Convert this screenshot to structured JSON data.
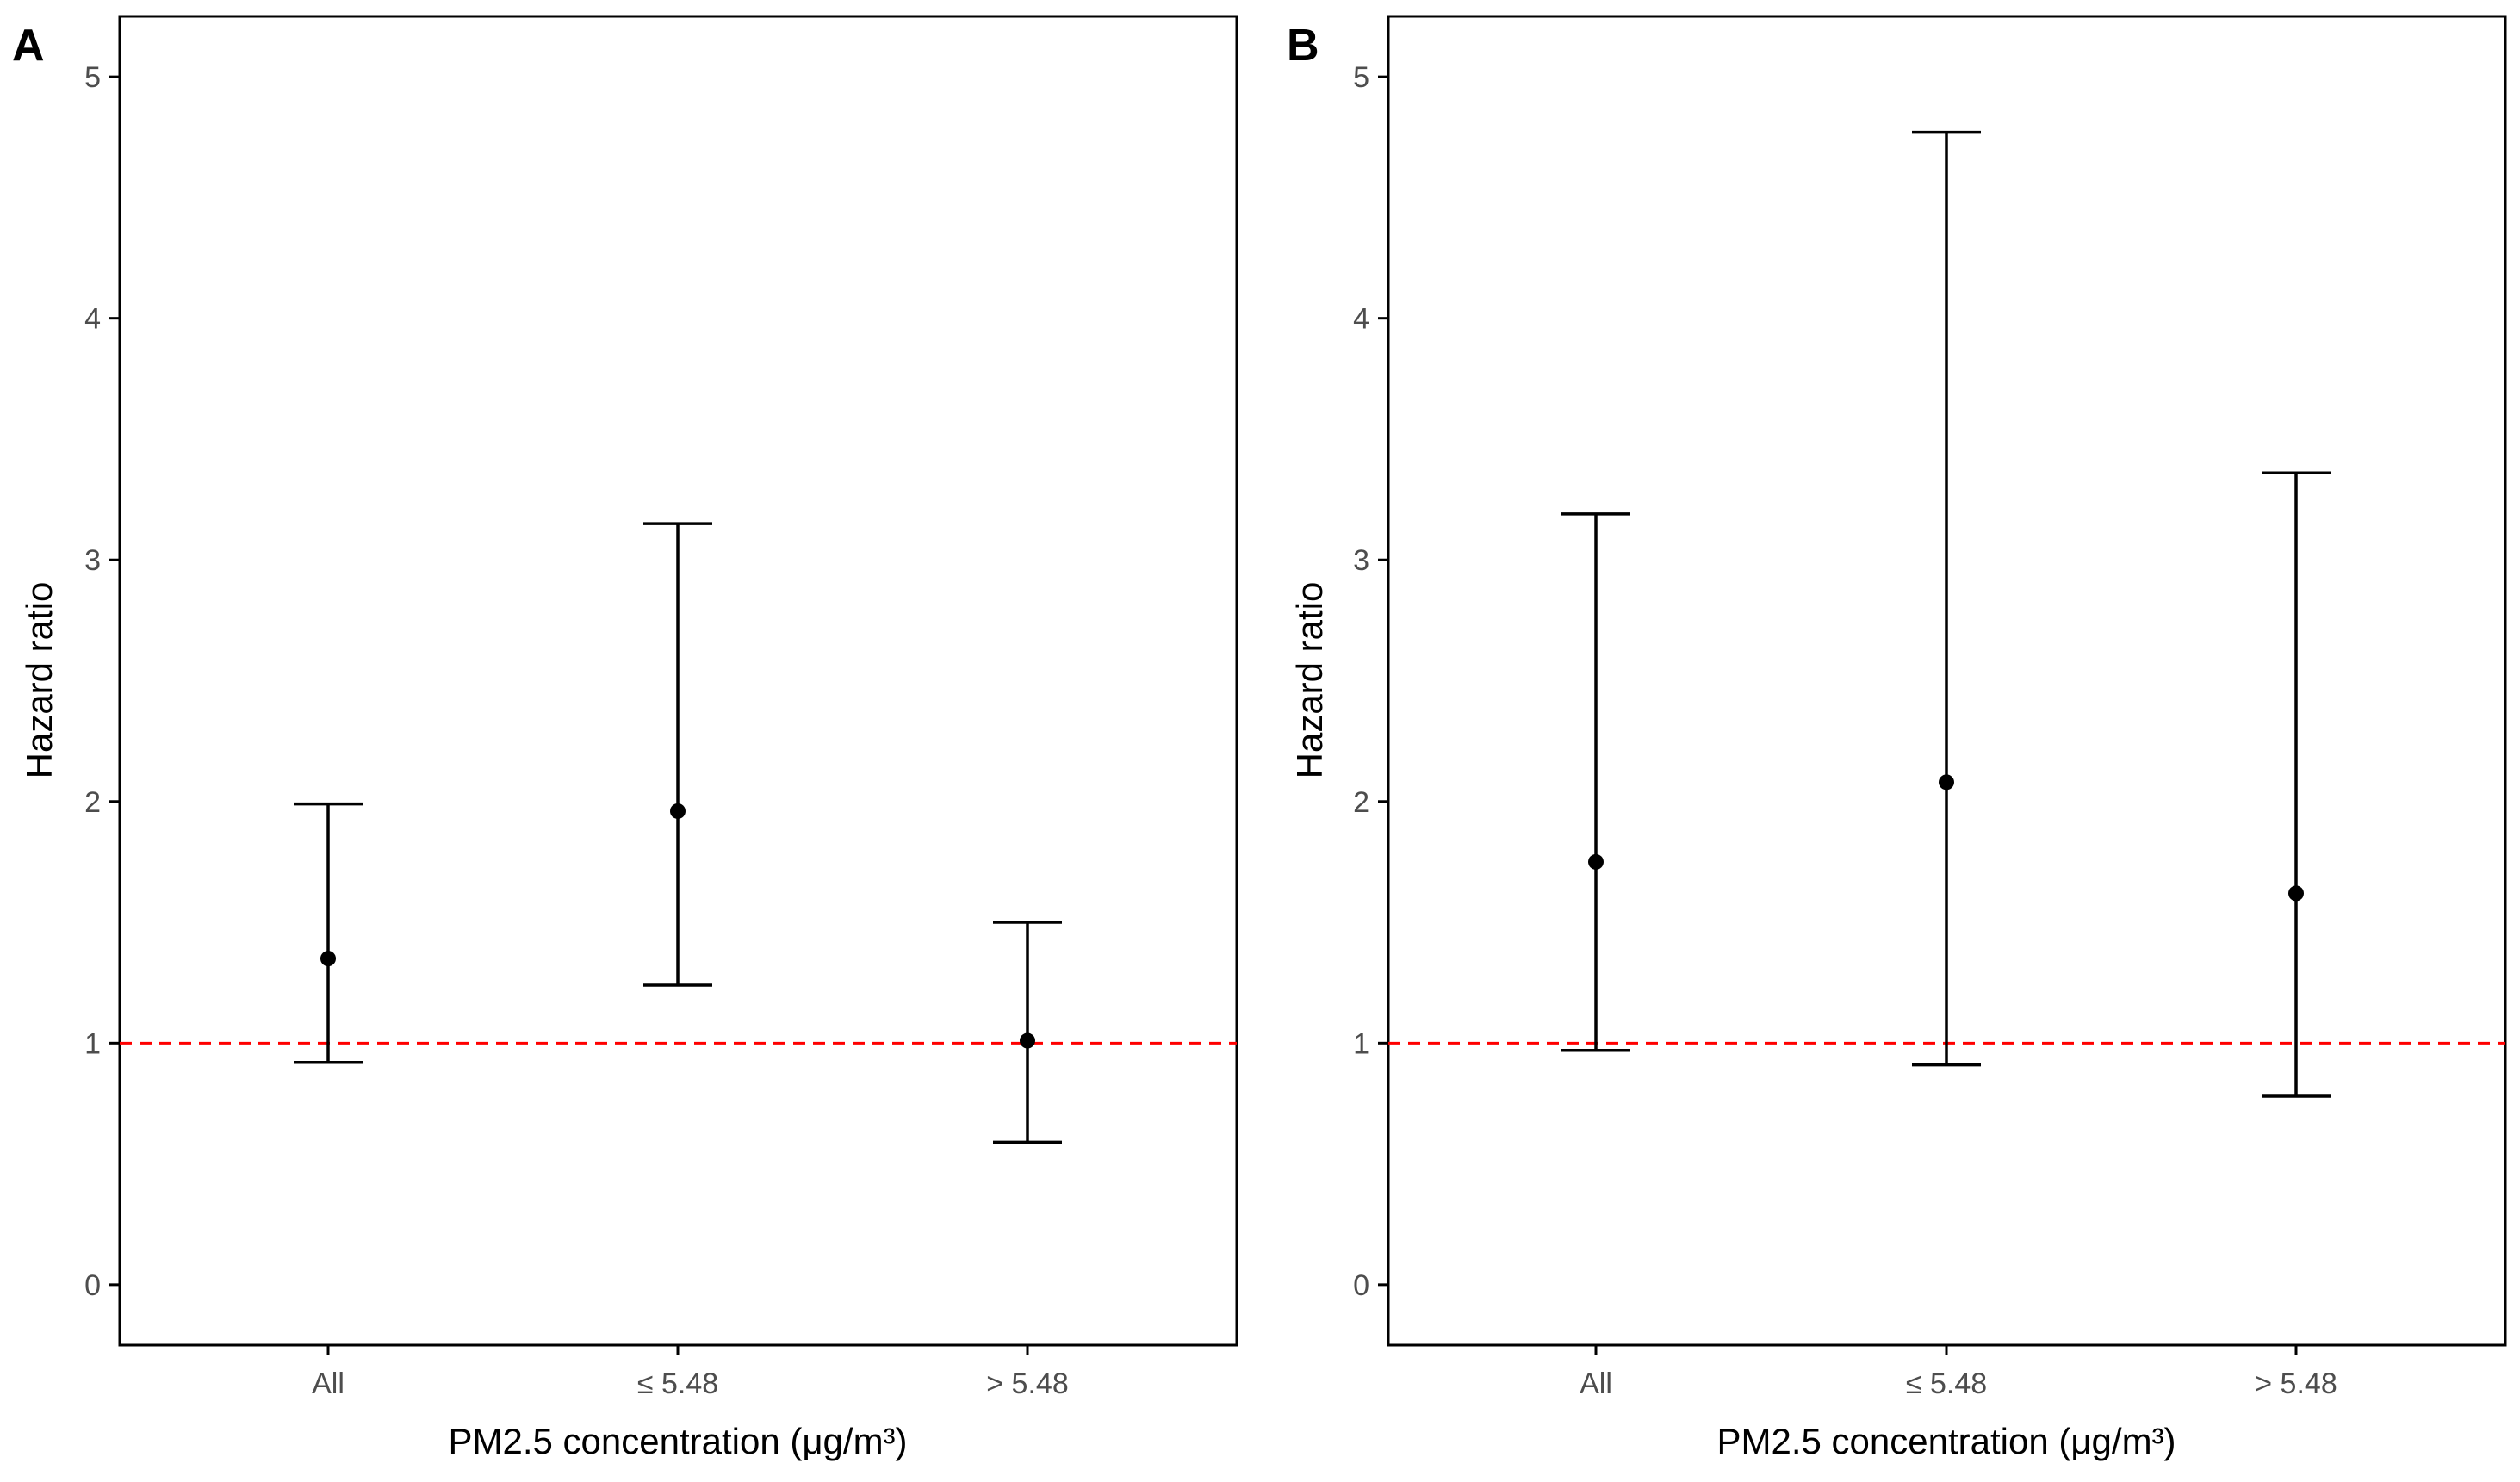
{
  "chart_data": [
    {
      "type": "errorbar",
      "panel_label": "A",
      "xlabel": "PM2.5 concentration (μg/m³)",
      "ylabel": "Hazard ratio",
      "categories": [
        "All",
        "≤ 5.48",
        "> 5.48"
      ],
      "estimates": [
        1.35,
        1.96,
        1.01
      ],
      "lower": [
        0.92,
        1.24,
        0.59
      ],
      "upper": [
        1.99,
        3.15,
        1.5
      ],
      "yticks": [
        "0",
        "1",
        "2",
        "3",
        "4",
        "5"
      ],
      "ylim": [
        -0.25,
        5.25
      ],
      "reference_line": 1,
      "grid": false
    },
    {
      "type": "errorbar",
      "panel_label": "B",
      "xlabel": "PM2.5 concentration (μg/m³)",
      "ylabel": "Hazard ratio",
      "categories": [
        "All",
        "≤ 5.48",
        "> 5.48"
      ],
      "estimates": [
        1.75,
        2.08,
        1.62
      ],
      "lower": [
        0.97,
        0.91,
        0.78
      ],
      "upper": [
        3.19,
        4.77,
        3.36
      ],
      "yticks": [
        "0",
        "1",
        "2",
        "3",
        "4",
        "5"
      ],
      "ylim": [
        -0.25,
        5.25
      ],
      "reference_line": 1,
      "grid": false
    }
  ],
  "colors": {
    "reference_line": "#ff0000",
    "points": "#000000",
    "axis": "#000000",
    "tick_text": "#4d4d4d"
  }
}
